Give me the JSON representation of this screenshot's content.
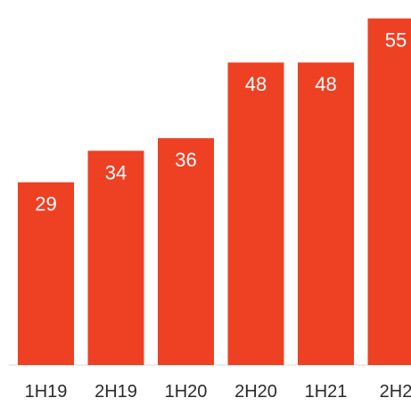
{
  "chart_data": {
    "type": "bar",
    "title": "",
    "xlabel": "",
    "ylabel": "",
    "categories": [
      "1H19",
      "2H19",
      "1H20",
      "2H20",
      "1H21",
      "2H2"
    ],
    "values": [
      29,
      34,
      36,
      48,
      48,
      55
    ],
    "ylim": [
      0,
      57.5
    ],
    "data_labels": [
      "29",
      "34",
      "36",
      "48",
      "48",
      "55"
    ],
    "grid": false,
    "legend": "none",
    "colors": {
      "bar": "#ee4023",
      "label": "#ffffff",
      "tick": "#2b2b2b",
      "baseline": "#d8d8d8"
    }
  }
}
